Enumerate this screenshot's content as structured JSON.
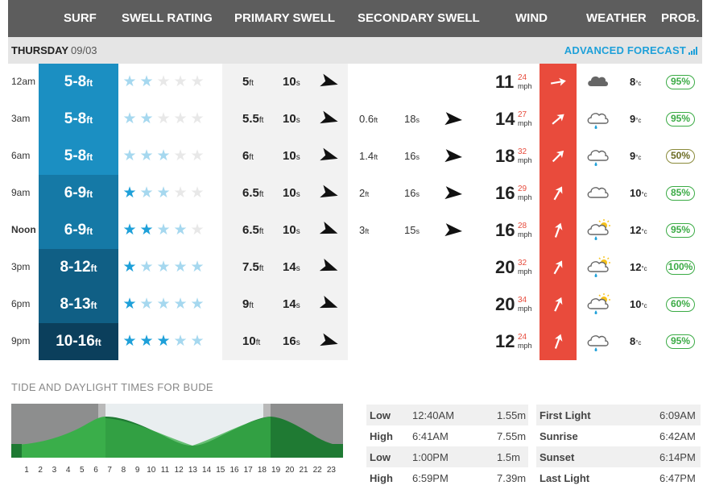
{
  "header": {
    "surf": "SURF",
    "swell_rating": "SWELL RATING",
    "primary_swell": "PRIMARY SWELL",
    "secondary_swell": "SECONDARY SWELL",
    "wind": "WIND",
    "weather": "WEATHER",
    "prob": "PROB."
  },
  "day": {
    "name": "THURSDAY",
    "date": "09/03",
    "advanced_forecast": "ADVANCED FORECAST"
  },
  "units": {
    "ft": "ft",
    "s": "s",
    "mph": "mph",
    "c": "°c"
  },
  "colors": {
    "surf_shades": [
      "#1b8fc2",
      "#1b8fc2",
      "#1b8fc2",
      "#1579a6",
      "#1579a6",
      "#105f85",
      "#105f85",
      "#0b3f5c"
    ],
    "star_full": "#1ea0d9",
    "star_faded": "#a6d8ef",
    "star_empty": "#e8e8e8",
    "wind_box": "#e94b3c",
    "prob_green": "#3bab45"
  },
  "rows": [
    {
      "time": "12am",
      "bold": false,
      "surf": "5-8",
      "stars": {
        "full": 0,
        "faded": 2
      },
      "primary": {
        "height": "5",
        "period": "10",
        "dir": 15
      },
      "secondary": null,
      "wind": {
        "speed": "11",
        "gust": "24",
        "dir": 80
      },
      "weather": "cloud-icon",
      "temp": "8",
      "prob": "95%"
    },
    {
      "time": "3am",
      "bold": false,
      "surf": "5-8",
      "stars": {
        "full": 0,
        "faded": 2
      },
      "primary": {
        "height": "5.5",
        "period": "10",
        "dir": 15
      },
      "secondary": {
        "height": "0.6",
        "period": "18",
        "dir": 5
      },
      "wind": {
        "speed": "14",
        "gust": "27",
        "dir": 50
      },
      "weather": "cloud-rain-icon",
      "temp": "9",
      "prob": "95%"
    },
    {
      "time": "6am",
      "bold": false,
      "surf": "5-8",
      "stars": {
        "full": 0,
        "faded": 3
      },
      "primary": {
        "height": "6",
        "period": "10",
        "dir": 15
      },
      "secondary": {
        "height": "1.4",
        "period": "16",
        "dir": 5
      },
      "wind": {
        "speed": "18",
        "gust": "32",
        "dir": 45
      },
      "weather": "cloud-rain-icon",
      "temp": "9",
      "prob": "50%"
    },
    {
      "time": "9am",
      "bold": false,
      "surf": "6-9",
      "stars": {
        "full": 1,
        "faded": 2
      },
      "primary": {
        "height": "6.5",
        "period": "10",
        "dir": 15
      },
      "secondary": {
        "height": "2",
        "period": "16",
        "dir": 5
      },
      "wind": {
        "speed": "16",
        "gust": "29",
        "dir": 30
      },
      "weather": "cloud-outline-icon",
      "temp": "10",
      "prob": "85%"
    },
    {
      "time": "Noon",
      "bold": true,
      "surf": "6-9",
      "stars": {
        "full": 2,
        "faded": 2
      },
      "primary": {
        "height": "6.5",
        "period": "10",
        "dir": 20
      },
      "secondary": {
        "height": "3",
        "period": "15",
        "dir": 5
      },
      "wind": {
        "speed": "16",
        "gust": "28",
        "dir": 20
      },
      "weather": "sun-cloud-rain-icon",
      "temp": "12",
      "prob": "95%"
    },
    {
      "time": "3pm",
      "bold": false,
      "surf": "8-12",
      "stars": {
        "full": 1,
        "faded": 4
      },
      "primary": {
        "height": "7.5",
        "period": "14",
        "dir": 20
      },
      "secondary": null,
      "wind": {
        "speed": "20",
        "gust": "32",
        "dir": 30
      },
      "weather": "sun-cloud-rain-icon",
      "temp": "12",
      "prob": "100%"
    },
    {
      "time": "6pm",
      "bold": false,
      "surf": "8-13",
      "stars": {
        "full": 1,
        "faded": 4
      },
      "primary": {
        "height": "9",
        "period": "14",
        "dir": 20
      },
      "secondary": null,
      "wind": {
        "speed": "20",
        "gust": "34",
        "dir": 25
      },
      "weather": "sun-cloud-rain-icon",
      "temp": "10",
      "prob": "60%"
    },
    {
      "time": "9pm",
      "bold": false,
      "surf": "10-16",
      "stars": {
        "full": 3,
        "faded": 2
      },
      "primary": {
        "height": "10",
        "period": "16",
        "dir": 15
      },
      "secondary": null,
      "wind": {
        "speed": "12",
        "gust": "24",
        "dir": 20
      },
      "weather": "cloud-rain-icon",
      "temp": "8",
      "prob": "95%"
    }
  ],
  "tide": {
    "title": "TIDE AND DAYLIGHT TIMES FOR BUDE",
    "hours": [
      "1",
      "2",
      "3",
      "4",
      "5",
      "6",
      "7",
      "8",
      "9",
      "10",
      "11",
      "12",
      "13",
      "14",
      "15",
      "16",
      "17",
      "18",
      "19",
      "20",
      "21",
      "22",
      "23"
    ],
    "tides": [
      {
        "type": "Low",
        "time": "12:40AM",
        "height": "1.55m"
      },
      {
        "type": "High",
        "time": "6:41AM",
        "height": "7.55m"
      },
      {
        "type": "Low",
        "time": "1:00PM",
        "height": "1.5m"
      },
      {
        "type": "High",
        "time": "6:59PM",
        "height": "7.39m"
      }
    ],
    "daylight": [
      {
        "label": "First Light",
        "time": "6:09AM"
      },
      {
        "label": "Sunrise",
        "time": "6:42AM"
      },
      {
        "label": "Sunset",
        "time": "6:14PM"
      },
      {
        "label": "Last Light",
        "time": "6:47PM"
      }
    ]
  }
}
